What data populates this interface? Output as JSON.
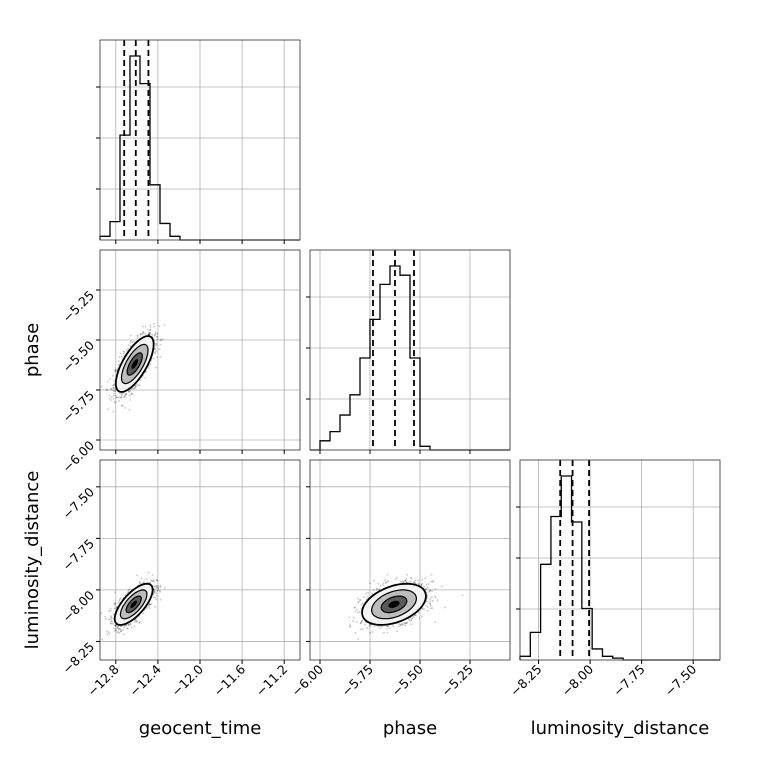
{
  "chart_data": {
    "type": "corner",
    "parameters": [
      "geocent_time",
      "phase",
      "luminosity_distance"
    ],
    "axis_labels": {
      "x": [
        "geocent_time",
        "phase",
        "luminosity_distance"
      ],
      "y_row1": "phase",
      "y_row2": "luminosity_distance"
    },
    "ranges": {
      "geocent_time": [
        -12.95,
        -11.05
      ],
      "phase": [
        -6.05,
        -5.05
      ],
      "luminosity_distance": [
        -8.34,
        -7.37
      ]
    },
    "ticks": {
      "geocent_time": {
        "values": [
          -12.8,
          -12.4,
          -12.0,
          -11.6,
          -11.2
        ],
        "labels": [
          "−12.8",
          "−12.4",
          "−12.0",
          "−11.6",
          "−11.2"
        ]
      },
      "phase": {
        "values": [
          -6.0,
          -5.75,
          -5.5,
          -5.25
        ],
        "labels": [
          "−6.00",
          "−5.75",
          "−5.50",
          "−5.25"
        ]
      },
      "luminosity_distance": {
        "values": [
          -8.25,
          -8.0,
          -7.75,
          -7.5
        ],
        "labels": [
          "−8.25",
          "−8.00",
          "−7.75",
          "−7.50"
        ]
      }
    },
    "grid": true,
    "histograms": {
      "geocent_time": {
        "bin_edges": [
          -12.95,
          -12.855,
          -12.76,
          -12.665,
          -12.57,
          -12.475,
          -12.38,
          -12.285,
          -12.19
        ],
        "counts": [
          0.02,
          0.1,
          0.57,
          1.0,
          0.85,
          0.3,
          0.09,
          0.02
        ],
        "quantiles": [
          -12.72,
          -12.61,
          -12.49
        ]
      },
      "phase": {
        "bin_edges": [
          -6.0,
          -5.95,
          -5.9,
          -5.85,
          -5.8,
          -5.75,
          -5.7,
          -5.65,
          -5.6,
          -5.55,
          -5.5,
          -5.45
        ],
        "counts": [
          0.05,
          0.1,
          0.19,
          0.3,
          0.5,
          0.71,
          0.9,
          1.0,
          0.95,
          0.5,
          0.02
        ],
        "quantiles": [
          -5.735,
          -5.625,
          -5.53
        ]
      },
      "luminosity_distance": {
        "bin_edges": [
          -8.34,
          -8.29,
          -8.24,
          -8.19,
          -8.14,
          -8.09,
          -8.04,
          -7.99,
          -7.94,
          -7.89,
          -7.84
        ],
        "counts": [
          0.02,
          0.15,
          0.52,
          0.78,
          1.0,
          0.75,
          0.28,
          0.06,
          0.02,
          0.01
        ],
        "quantiles": [
          -8.145,
          -8.085,
          -8.005
        ]
      }
    },
    "densities": [
      {
        "x": "geocent_time",
        "y": "phase",
        "mean": [
          -12.62,
          -5.62
        ],
        "std": [
          0.09,
          0.07
        ],
        "corr": 0.7
      },
      {
        "x": "geocent_time",
        "y": "luminosity_distance",
        "mean": [
          -12.63,
          -8.07
        ],
        "std": [
          0.09,
          0.05
        ],
        "corr": 0.7
      },
      {
        "x": "phase",
        "y": "luminosity_distance",
        "mean": [
          -5.63,
          -8.07
        ],
        "std": [
          0.08,
          0.05
        ],
        "corr": 0.4
      }
    ]
  }
}
